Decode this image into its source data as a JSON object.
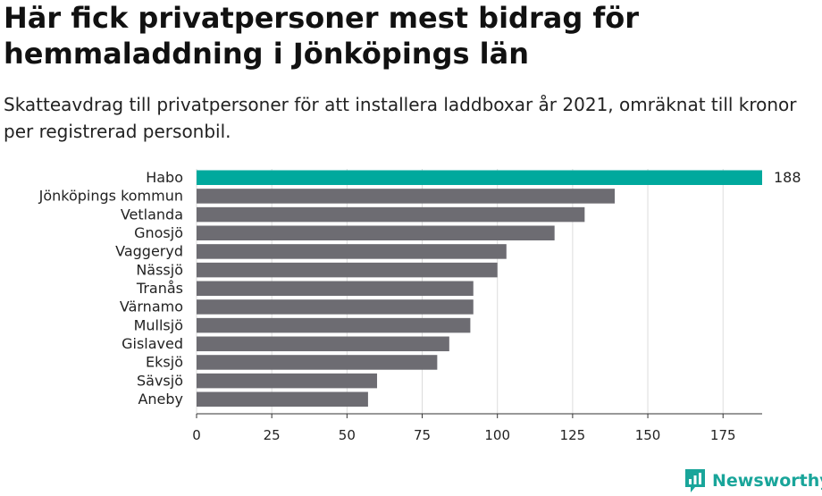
{
  "header": {
    "title": "Här fick privatpersoner mest bidrag för hemmaladdning i Jönköpings län",
    "subtitle": "Skatteavdrag till privatpersoner för att installera laddboxar år 2021, omräknat till kronor per registrerad personbil."
  },
  "chart_data": {
    "type": "bar",
    "orientation": "horizontal",
    "categories": [
      "Habo",
      "Jönköpings kommun",
      "Vetlanda",
      "Gnosjö",
      "Vaggeryd",
      "Nässjö",
      "Tranås",
      "Värnamo",
      "Mullsjö",
      "Gislaved",
      "Eksjö",
      "Sävsjö",
      "Aneby"
    ],
    "values": [
      188,
      139,
      129,
      119,
      103,
      100,
      92,
      92,
      91,
      84,
      80,
      60,
      57
    ],
    "data_labels": [
      {
        "category": "Habo",
        "text": "188"
      }
    ],
    "highlight": "Habo",
    "x_ticks": [
      0,
      25,
      50,
      75,
      100,
      125,
      150,
      175
    ],
    "xlim": [
      0,
      188
    ],
    "grid": true,
    "colors": {
      "highlight": "#00a99d",
      "bar": "#6d6c72",
      "grid": "#dcdcdc",
      "axis": "#333333"
    }
  },
  "brand": {
    "name": "Newsworthy",
    "icon": "newsworthy-logo-icon",
    "color": "#19a59a"
  }
}
